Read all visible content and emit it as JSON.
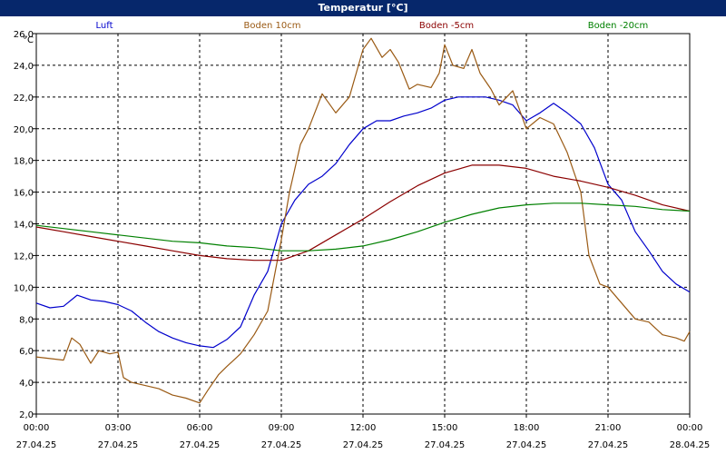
{
  "window": {
    "title": "Temperatur [°C]"
  },
  "chart_data": {
    "type": "line",
    "title": "Temperatur [°C]",
    "ylabel": "°C",
    "xlabel": "",
    "ylim": [
      2,
      26
    ],
    "xlim": [
      0,
      24
    ],
    "grid": true,
    "y_ticks": [
      "2,0",
      "4,0",
      "6,0",
      "8,0",
      "10,0",
      "12,0",
      "14,0",
      "16,0",
      "18,0",
      "20,0",
      "22,0",
      "24,0",
      "26,0"
    ],
    "x_ticks": [
      {
        "time": "00:00",
        "date": "27.04.25"
      },
      {
        "time": "03:00",
        "date": "27.04.25"
      },
      {
        "time": "06:00",
        "date": "27.04.25"
      },
      {
        "time": "09:00",
        "date": "27.04.25"
      },
      {
        "time": "12:00",
        "date": "27.04.25"
      },
      {
        "time": "15:00",
        "date": "27.04.25"
      },
      {
        "time": "18:00",
        "date": "27.04.25"
      },
      {
        "time": "21:00",
        "date": "27.04.25"
      },
      {
        "time": "00:00",
        "date": "28.04.25"
      }
    ],
    "legend_placement": "top",
    "series": [
      {
        "name": "Luft",
        "color": "#0000cc",
        "points": [
          [
            0,
            9.0
          ],
          [
            0.5,
            8.7
          ],
          [
            1,
            8.8
          ],
          [
            1.5,
            9.5
          ],
          [
            2,
            9.2
          ],
          [
            2.5,
            9.1
          ],
          [
            3,
            8.9
          ],
          [
            3.5,
            8.5
          ],
          [
            4,
            7.8
          ],
          [
            4.5,
            7.2
          ],
          [
            5,
            6.8
          ],
          [
            5.5,
            6.5
          ],
          [
            6,
            6.3
          ],
          [
            6.5,
            6.2
          ],
          [
            7,
            6.7
          ],
          [
            7.5,
            7.5
          ],
          [
            8,
            9.5
          ],
          [
            8.5,
            11.0
          ],
          [
            9,
            14.0
          ],
          [
            9.5,
            15.5
          ],
          [
            10,
            16.5
          ],
          [
            10.5,
            17.0
          ],
          [
            11,
            17.8
          ],
          [
            11.5,
            19.0
          ],
          [
            12,
            20.0
          ],
          [
            12.5,
            20.5
          ],
          [
            13,
            20.5
          ],
          [
            13.5,
            20.8
          ],
          [
            14,
            21.0
          ],
          [
            14.5,
            21.3
          ],
          [
            15,
            21.8
          ],
          [
            15.5,
            22.0
          ],
          [
            16,
            22.0
          ],
          [
            16.5,
            22.0
          ],
          [
            17,
            21.8
          ],
          [
            17.5,
            21.5
          ],
          [
            18,
            20.5
          ],
          [
            18.5,
            21.0
          ],
          [
            19,
            21.6
          ],
          [
            19.5,
            21.0
          ],
          [
            20,
            20.3
          ],
          [
            20.5,
            18.8
          ],
          [
            21,
            16.5
          ],
          [
            21.5,
            15.5
          ],
          [
            22,
            13.5
          ],
          [
            22.5,
            12.3
          ],
          [
            23,
            11.0
          ],
          [
            23.5,
            10.2
          ],
          [
            24,
            9.7
          ]
        ]
      },
      {
        "name": "Boden 10cm",
        "color": "#9a5a14",
        "points": [
          [
            0,
            5.6
          ],
          [
            0.5,
            5.5
          ],
          [
            1,
            5.4
          ],
          [
            1.3,
            6.8
          ],
          [
            1.6,
            6.4
          ],
          [
            2,
            5.2
          ],
          [
            2.3,
            6.0
          ],
          [
            2.7,
            5.8
          ],
          [
            3,
            5.9
          ],
          [
            3.2,
            4.3
          ],
          [
            3.5,
            4.0
          ],
          [
            4,
            3.8
          ],
          [
            4.5,
            3.6
          ],
          [
            5,
            3.2
          ],
          [
            5.5,
            3.0
          ],
          [
            6,
            2.7
          ],
          [
            6.3,
            3.5
          ],
          [
            6.7,
            4.5
          ],
          [
            7,
            5.0
          ],
          [
            7.5,
            5.8
          ],
          [
            8,
            7.0
          ],
          [
            8.5,
            8.5
          ],
          [
            9,
            13.0
          ],
          [
            9.3,
            16.0
          ],
          [
            9.7,
            19.0
          ],
          [
            10,
            20.0
          ],
          [
            10.5,
            22.2
          ],
          [
            11,
            21.0
          ],
          [
            11.5,
            22.0
          ],
          [
            12,
            25.0
          ],
          [
            12.3,
            25.7
          ],
          [
            12.7,
            24.5
          ],
          [
            13,
            25.0
          ],
          [
            13.3,
            24.2
          ],
          [
            13.7,
            22.5
          ],
          [
            14,
            22.8
          ],
          [
            14.5,
            22.6
          ],
          [
            14.8,
            23.5
          ],
          [
            15,
            25.3
          ],
          [
            15.3,
            24.0
          ],
          [
            15.7,
            23.8
          ],
          [
            16,
            25.0
          ],
          [
            16.3,
            23.5
          ],
          [
            16.7,
            22.5
          ],
          [
            17,
            21.5
          ],
          [
            17.5,
            22.4
          ],
          [
            18,
            20.0
          ],
          [
            18.5,
            20.7
          ],
          [
            19,
            20.3
          ],
          [
            19.5,
            18.5
          ],
          [
            20,
            16.0
          ],
          [
            20.3,
            12.0
          ],
          [
            20.7,
            10.2
          ],
          [
            21,
            10.0
          ],
          [
            21.5,
            9.0
          ],
          [
            22,
            8.0
          ],
          [
            22.5,
            7.8
          ],
          [
            23,
            7.0
          ],
          [
            23.5,
            6.8
          ],
          [
            23.8,
            6.6
          ],
          [
            24,
            7.2
          ]
        ]
      },
      {
        "name": "Boden -5cm",
        "color": "#8b0000",
        "points": [
          [
            0,
            13.8
          ],
          [
            1,
            13.5
          ],
          [
            2,
            13.2
          ],
          [
            3,
            12.9
          ],
          [
            4,
            12.6
          ],
          [
            5,
            12.3
          ],
          [
            6,
            12.0
          ],
          [
            7,
            11.8
          ],
          [
            8,
            11.7
          ],
          [
            9,
            11.7
          ],
          [
            10,
            12.3
          ],
          [
            11,
            13.3
          ],
          [
            12,
            14.3
          ],
          [
            13,
            15.4
          ],
          [
            14,
            16.4
          ],
          [
            15,
            17.2
          ],
          [
            16,
            17.7
          ],
          [
            17,
            17.7
          ],
          [
            18,
            17.5
          ],
          [
            19,
            17.0
          ],
          [
            20,
            16.7
          ],
          [
            21,
            16.3
          ],
          [
            22,
            15.8
          ],
          [
            23,
            15.2
          ],
          [
            24,
            14.8
          ]
        ]
      },
      {
        "name": "Boden -20cm",
        "color": "#008000",
        "points": [
          [
            0,
            13.9
          ],
          [
            1,
            13.7
          ],
          [
            2,
            13.5
          ],
          [
            3,
            13.3
          ],
          [
            4,
            13.1
          ],
          [
            5,
            12.9
          ],
          [
            6,
            12.8
          ],
          [
            7,
            12.6
          ],
          [
            8,
            12.5
          ],
          [
            9,
            12.3
          ],
          [
            10,
            12.3
          ],
          [
            11,
            12.4
          ],
          [
            12,
            12.6
          ],
          [
            13,
            13.0
          ],
          [
            14,
            13.5
          ],
          [
            15,
            14.1
          ],
          [
            16,
            14.6
          ],
          [
            17,
            15.0
          ],
          [
            18,
            15.2
          ],
          [
            19,
            15.3
          ],
          [
            20,
            15.3
          ],
          [
            21,
            15.2
          ],
          [
            22,
            15.1
          ],
          [
            23,
            14.9
          ],
          [
            24,
            14.8
          ]
        ]
      }
    ]
  }
}
